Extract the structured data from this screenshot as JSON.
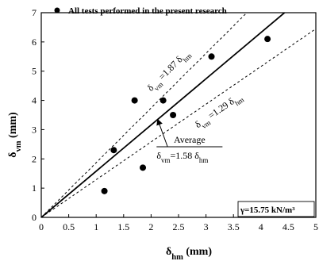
{
  "chart_data": {
    "type": "scatter",
    "xlabel": {
      "main": "δ",
      "sub": "hm",
      "unit": " (mm)"
    },
    "ylabel": {
      "main": "δ",
      "sub": "vm",
      "unit": " (mm)"
    },
    "xlim": [
      0,
      5
    ],
    "ylim": [
      0,
      7
    ],
    "x_ticks": [
      "0",
      "0.5",
      "1",
      "1.5",
      "2",
      "2.5",
      "3",
      "3.5",
      "4",
      "4.5",
      "5"
    ],
    "y_ticks": [
      "0",
      "1",
      "2",
      "3",
      "4",
      "5",
      "6",
      "7"
    ],
    "grid": false,
    "legend": {
      "position": "top",
      "label": "All tests performed in the present research"
    },
    "series": [
      {
        "name": "All tests performed in the present research",
        "marker": "filled-circle",
        "points": [
          {
            "x": 1.15,
            "y": 0.9
          },
          {
            "x": 1.32,
            "y": 2.3
          },
          {
            "x": 1.7,
            "y": 4.0
          },
          {
            "x": 1.85,
            "y": 1.7
          },
          {
            "x": 2.22,
            "y": 4.0
          },
          {
            "x": 2.4,
            "y": 3.5
          },
          {
            "x": 3.1,
            "y": 5.5
          },
          {
            "x": 4.12,
            "y": 6.1
          }
        ]
      }
    ],
    "reference_lines": [
      {
        "slope": 1.58,
        "style": "solid",
        "label_parts": [
          "δ",
          "vm",
          "=1.58 δ",
          "hm"
        ],
        "label_prefix": "Average"
      },
      {
        "slope": 1.87,
        "style": "dashed",
        "label_parts": [
          "δ",
          "vm",
          " =1.87 δ",
          "hm"
        ]
      },
      {
        "slope": 1.29,
        "style": "dashed",
        "label_parts": [
          "δ",
          "vm",
          " =1.29 δ",
          "hm"
        ]
      }
    ],
    "annotation_box": "γ=15.75 kN/m³"
  }
}
